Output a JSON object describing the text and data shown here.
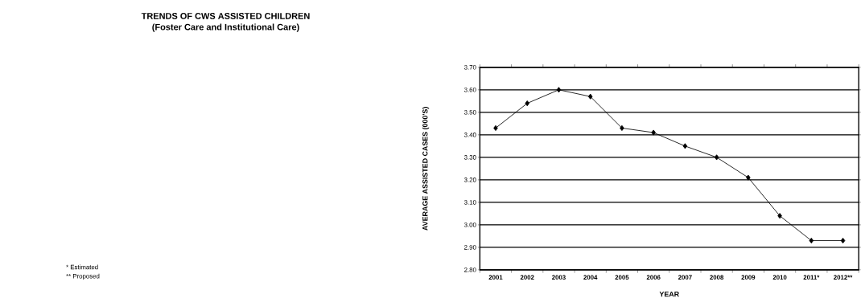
{
  "chart_data": {
    "type": "line",
    "title": "TRENDS OF CWS ASSISTED CHILDREN",
    "subtitle": "(Foster Care and Institutional Care)",
    "xlabel": "YEAR",
    "ylabel": "AVERAGE ASSISTED CASES (000'S)",
    "categories": [
      "2001",
      "2002",
      "2003",
      "2004",
      "2005",
      "2006",
      "2007",
      "2008",
      "2009",
      "2010",
      "2011*",
      "2012**"
    ],
    "values": [
      3.43,
      3.54,
      3.6,
      3.57,
      3.43,
      3.41,
      3.35,
      3.3,
      3.21,
      3.04,
      2.93,
      2.93
    ],
    "color": "#000000",
    "marker": "diamond",
    "line_style": "solid",
    "grid": "y",
    "ylim": [
      2.8,
      3.7
    ],
    "yticks": [
      {
        "value": 2.8,
        "label": "2.80"
      },
      {
        "value": 2.9,
        "label": "2.90"
      },
      {
        "value": 3.0,
        "label": "3.00"
      },
      {
        "value": 3.1,
        "label": "3.10"
      },
      {
        "value": 3.2,
        "label": "3.20"
      },
      {
        "value": 3.3,
        "label": "3.30"
      },
      {
        "value": 3.4,
        "label": "3.40"
      },
      {
        "value": 3.5,
        "label": "3.50"
      },
      {
        "value": 3.6,
        "label": "3.60"
      },
      {
        "value": 3.7,
        "label": "3.70"
      }
    ],
    "annotations": [
      "* Estimated",
      "** Proposed"
    ]
  }
}
